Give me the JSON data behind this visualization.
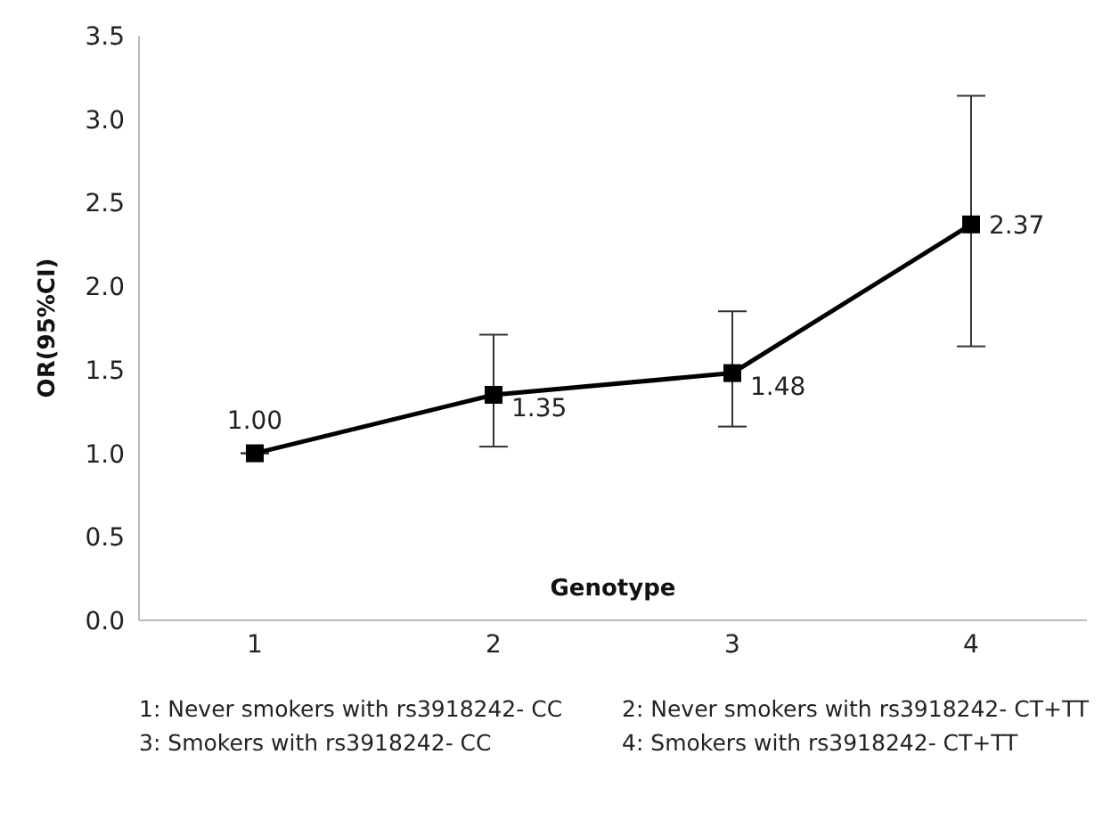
{
  "chart_data": {
    "type": "line",
    "xlabel": "Genotype",
    "ylabel": "OR(95%CI)",
    "categories": [
      "1",
      "2",
      "3",
      "4"
    ],
    "series": [
      {
        "color": "#000000",
        "values": [
          1.0,
          1.35,
          1.48,
          2.37
        ],
        "errors": [
          null,
          [
            1.04,
            1.71
          ],
          [
            1.16,
            1.85
          ],
          [
            1.64,
            3.14
          ]
        ],
        "value_labels": [
          "1.00",
          "1.35",
          "1.48",
          "2.37"
        ]
      }
    ],
    "ylim": [
      0,
      3.5
    ],
    "yticks": [
      {
        "value": 0,
        "label": "0.0"
      },
      {
        "value": 0.5,
        "label": "0.5"
      },
      {
        "value": 1,
        "label": "1.0"
      },
      {
        "value": 1.5,
        "label": "1.5"
      },
      {
        "value": 2,
        "label": "2.0"
      },
      {
        "value": 2.5,
        "label": "2.5"
      },
      {
        "value": 3,
        "label": "3.0"
      },
      {
        "value": 3.5,
        "label": "3.5"
      }
    ],
    "grid": false,
    "legend": false,
    "marker": "square",
    "line_style": "solid",
    "annotations": [
      "1: Never smokers with rs3918242- CC",
      "2: Never smokers with rs3918242- CT+TT",
      "3: Smokers with rs3918242- CC",
      "4: Smokers with rs3918242- CT+TT"
    ]
  }
}
